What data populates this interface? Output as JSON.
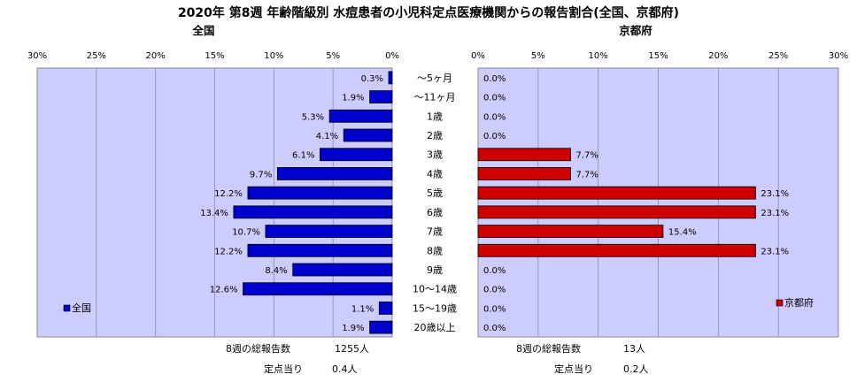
{
  "title": "2020年 第8週 年齢階級別 水痘患者の小児科定点医療機関からの報告割合(全国、京都府)",
  "colors": {
    "plot_bg": "#ccccff",
    "left_bar": "#0000cc",
    "right_bar": "#cc0000",
    "bar_edge": "#000000",
    "grid": "#8a8aa8"
  },
  "chart_data": [
    {
      "type": "bar",
      "orientation": "horizontal",
      "direction": "right-to-left",
      "title": "全国",
      "legend": "全国",
      "legend_position": "bottom-left",
      "xlim": [
        0,
        30
      ],
      "ticks": [
        "0%",
        "5%",
        "10%",
        "15%",
        "20%",
        "25%",
        "30%"
      ],
      "tick_values": [
        0,
        5,
        10,
        15,
        20,
        25,
        30
      ],
      "grid": true,
      "categories": [
        "～5ヶ月",
        "～11ヶ月",
        "1歳",
        "2歳",
        "3歳",
        "4歳",
        "5歳",
        "6歳",
        "7歳",
        "8歳",
        "9歳",
        "10～14歳",
        "15～19歳",
        "20歳以上"
      ],
      "values": [
        0.3,
        1.9,
        5.3,
        4.1,
        6.1,
        9.7,
        12.2,
        13.4,
        10.7,
        12.2,
        8.4,
        12.6,
        1.1,
        1.9
      ],
      "labels": [
        "0.3%",
        "1.9%",
        "5.3%",
        "4.1%",
        "6.1%",
        "9.7%",
        "12.2%",
        "13.4%",
        "10.7%",
        "12.2%",
        "8.4%",
        "12.6%",
        "1.1%",
        "1.9%"
      ]
    },
    {
      "type": "bar",
      "orientation": "horizontal",
      "direction": "left-to-right",
      "title": "京都府",
      "legend": "京都府",
      "legend_position": "bottom-right",
      "xlim": [
        0,
        30
      ],
      "ticks": [
        "0%",
        "5%",
        "10%",
        "15%",
        "20%",
        "25%",
        "30%"
      ],
      "tick_values": [
        0,
        5,
        10,
        15,
        20,
        25,
        30
      ],
      "grid": true,
      "categories": [
        "～5ヶ月",
        "～11ヶ月",
        "1歳",
        "2歳",
        "3歳",
        "4歳",
        "5歳",
        "6歳",
        "7歳",
        "8歳",
        "9歳",
        "10～14歳",
        "15～19歳",
        "20歳以上"
      ],
      "values": [
        0.0,
        0.0,
        0.0,
        0.0,
        7.7,
        7.7,
        23.1,
        23.1,
        15.4,
        23.1,
        0.0,
        0.0,
        0.0,
        0.0
      ],
      "labels": [
        "0.0%",
        "0.0%",
        "0.0%",
        "0.0%",
        "7.7%",
        "7.7%",
        "23.1%",
        "23.1%",
        "15.4%",
        "23.1%",
        "0.0%",
        "0.0%",
        "0.0%",
        "0.0%"
      ]
    }
  ],
  "footer": {
    "left": {
      "reports_label": "8週の総報告数",
      "reports_value": "1255人",
      "per_label": "定点当り",
      "per_value": "0.4人"
    },
    "right": {
      "reports_label": "8週の総報告数",
      "reports_value": "13人",
      "per_label": "定点当り",
      "per_value": "0.2人"
    }
  }
}
